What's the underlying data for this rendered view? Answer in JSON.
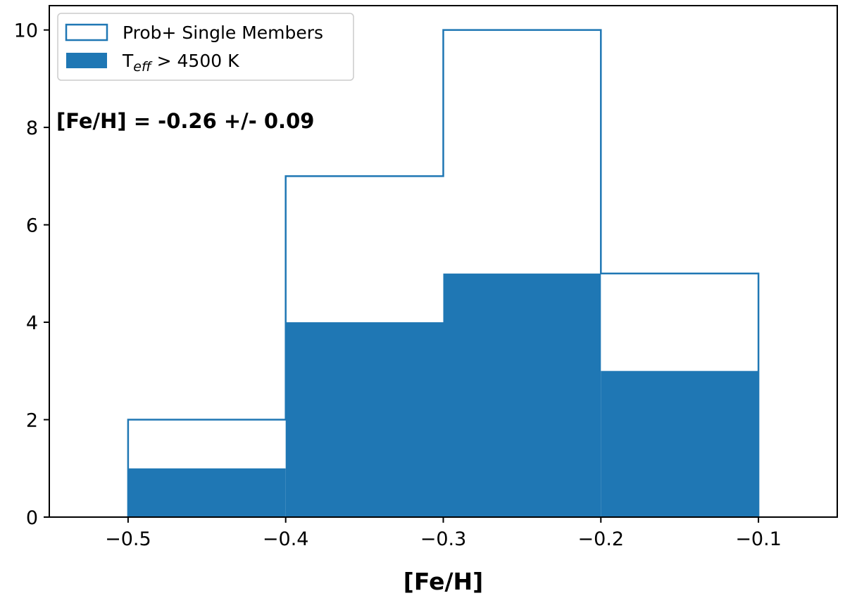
{
  "chart_data": {
    "type": "histogram",
    "title": "",
    "xlabel": "[Fe/H]",
    "ylabel": "",
    "xlim": [
      -0.55,
      -0.05
    ],
    "ylim": [
      0,
      10.5
    ],
    "bin_edges": [
      -0.5,
      -0.4,
      -0.3,
      -0.2,
      -0.1
    ],
    "x_ticks": [
      -0.5,
      -0.4,
      -0.3,
      -0.2,
      -0.1
    ],
    "x_tick_labels": [
      "−0.5",
      "−0.4",
      "−0.3",
      "−0.2",
      "−0.1"
    ],
    "y_ticks": [
      0,
      2,
      4,
      6,
      8,
      10
    ],
    "y_tick_labels": [
      "0",
      "2",
      "4",
      "6",
      "8",
      "10"
    ],
    "grid": false,
    "legend_position": "top-left",
    "series": [
      {
        "name": "Prob+ Single Members",
        "style": "step-outline",
        "color": "#1f77b4",
        "values": [
          2,
          7,
          10,
          5
        ]
      },
      {
        "name": "T_eff > 4500 K",
        "style": "filled",
        "color": "#1f77b4",
        "values": [
          1,
          4,
          5,
          3
        ]
      }
    ],
    "legend": [
      {
        "text": "Prob+ Single Members",
        "style": "outline"
      },
      {
        "text_main": "T",
        "text_sub": "eff",
        "text_rest": " > 4500 K",
        "style": "filled"
      }
    ],
    "annotation": "[Fe/H] = -0.26 +/- 0.09"
  }
}
